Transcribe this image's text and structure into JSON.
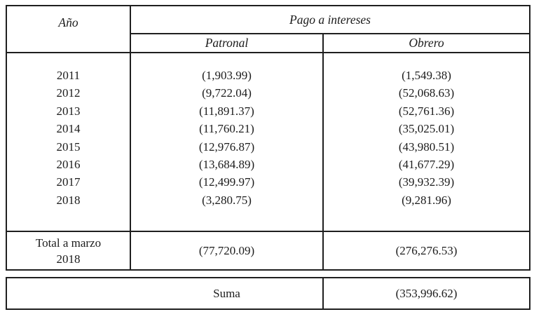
{
  "colors": {
    "background": "#ffffff",
    "border": "#1f1f1f",
    "text": "#1c1c1c"
  },
  "table": {
    "header": {
      "year": "Año",
      "group": "Pago a intereses",
      "patronal": "Patronal",
      "obrero": "Obrero"
    },
    "rows": [
      {
        "year": "2011",
        "patronal": "(1,903.99)",
        "obrero": "(1,549.38)"
      },
      {
        "year": "2012",
        "patronal": "(9,722.04)",
        "obrero": "(52,068.63)"
      },
      {
        "year": "2013",
        "patronal": "(11,891.37)",
        "obrero": "(52,761.36)"
      },
      {
        "year": "2014",
        "patronal": "(11,760.21)",
        "obrero": "(35,025.01)"
      },
      {
        "year": "2015",
        "patronal": "(12,976.87)",
        "obrero": "(43,980.51)"
      },
      {
        "year": "2016",
        "patronal": "(13,684.89)",
        "obrero": "(41,677.29)"
      },
      {
        "year": "2017",
        "patronal": "(12,499.97)",
        "obrero": "(39,932.39)"
      },
      {
        "year": "2018",
        "patronal": "(3,280.75)",
        "obrero": "(9,281.96)"
      }
    ],
    "total": {
      "label_line1": "Total a marzo",
      "label_line2": "2018",
      "patronal": "(77,720.09)",
      "obrero": "(276,276.53)"
    },
    "summary": {
      "label": "Suma",
      "value": "(353,996.62)"
    }
  }
}
